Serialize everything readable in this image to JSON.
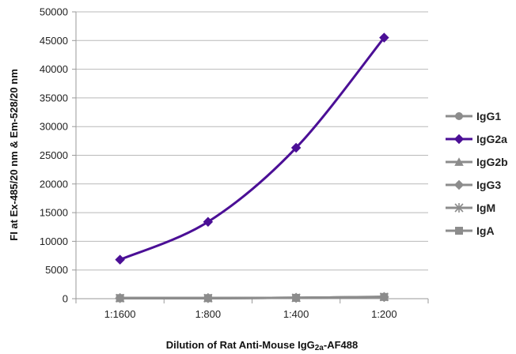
{
  "chart_data": {
    "type": "line",
    "categories": [
      "1:1600",
      "1:800",
      "1:400",
      "1:200"
    ],
    "ylabel": "FI at Ex-485/20 nm & Em-528/20 nm",
    "xlabel": "Dilution of Rat Anti-Mouse IgG2a-AF488",
    "xlabel_parts": {
      "before": "Dilution of Rat Anti-Mouse IgG",
      "sub": "2a",
      "after": "-AF488"
    },
    "ylim": [
      0,
      50000
    ],
    "yticks": [
      0,
      5000,
      10000,
      15000,
      20000,
      25000,
      30000,
      35000,
      40000,
      45000,
      50000
    ],
    "grid": true,
    "legend_position": "right",
    "series": [
      {
        "name": "IgG1",
        "values": [
          100,
          100,
          150,
          300
        ],
        "color": "#8c8c8c",
        "marker": "circle"
      },
      {
        "name": "IgG2a",
        "values": [
          6800,
          13400,
          26300,
          45500
        ],
        "color": "#4b0f96",
        "marker": "diamond"
      },
      {
        "name": "IgG2b",
        "values": [
          100,
          100,
          150,
          350
        ],
        "color": "#8c8c8c",
        "marker": "triangle"
      },
      {
        "name": "IgG3",
        "values": [
          100,
          100,
          150,
          300
        ],
        "color": "#8c8c8c",
        "marker": "diamond"
      },
      {
        "name": "IgM",
        "values": [
          100,
          100,
          150,
          300
        ],
        "color": "#8c8c8c",
        "marker": "star"
      },
      {
        "name": "IgA",
        "values": [
          100,
          100,
          150,
          300
        ],
        "color": "#8c8c8c",
        "marker": "square"
      }
    ]
  }
}
